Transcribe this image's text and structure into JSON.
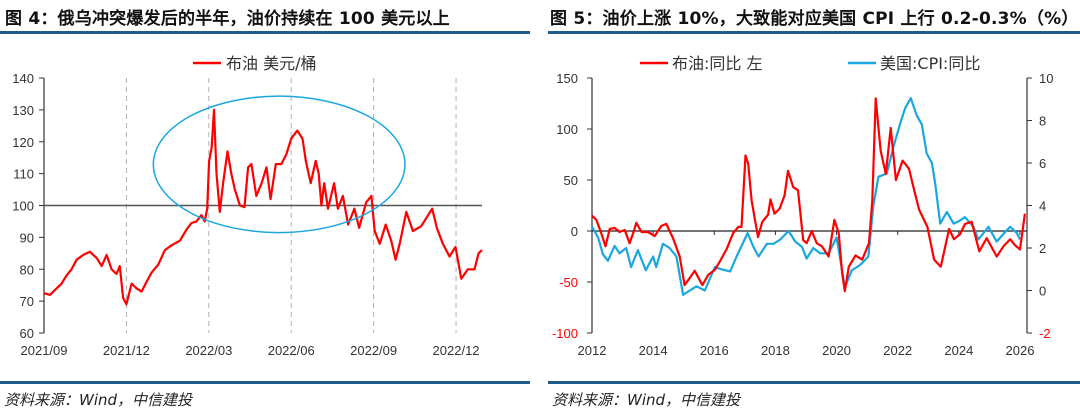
{
  "figures": [
    {
      "title": "图 4：俄乌冲突爆发后的半年，油价持续在 100 美元以上",
      "source": "资料来源：Wind，中信建投"
    },
    {
      "title": "图 5：油价上涨 10%，大致能对应美国 CPI 上行 0.2-0.3%（%）",
      "source": "资料来源：Wind，中信建投"
    }
  ],
  "colors": {
    "oil": "#ff0000",
    "cpi": "#1aa7e0",
    "rule": "#1f5c8b",
    "ellipse": "#1aa7e0"
  },
  "chart_data": [
    {
      "type": "line",
      "title": "俄乌冲突爆发后的半年，油价持续在 100 美元以上",
      "x_unit": "months since 2021/09",
      "xticks": [
        {
          "v": 0,
          "label": "2021/09"
        },
        {
          "v": 3,
          "label": "2021/12"
        },
        {
          "v": 6,
          "label": "2022/03"
        },
        {
          "v": 9,
          "label": "2022/06"
        },
        {
          "v": 12,
          "label": "2022/09"
        },
        {
          "v": 15,
          "label": "2022/12"
        }
      ],
      "ylim": [
        60,
        140
      ],
      "yticks": [
        60,
        70,
        80,
        90,
        100,
        110,
        120,
        130,
        140
      ],
      "reference_line": 100,
      "vertical_gridlines": "dashed at each x tick",
      "legend_position": "top-center",
      "annotation": {
        "type": "ellipse",
        "center": [
          8.56,
          112.9
        ],
        "radius": [
          4.58,
          21.4
        ]
      },
      "series": [
        {
          "name": "布油 美元/桶",
          "color": "#ff0000",
          "x": [
            0,
            0.22,
            0.46,
            0.64,
            0.82,
            1.0,
            1.19,
            1.43,
            1.67,
            1.92,
            2.1,
            2.28,
            2.46,
            2.64,
            2.76,
            2.88,
            3.0,
            3.19,
            3.37,
            3.55,
            3.73,
            3.92,
            4.16,
            4.4,
            4.64,
            4.95,
            5.19,
            5.37,
            5.55,
            5.73,
            5.85,
            5.94,
            6.01,
            6.1,
            6.19,
            6.28,
            6.4,
            6.52,
            6.68,
            6.82,
            6.95,
            7.13,
            7.3,
            7.43,
            7.55,
            7.73,
            7.92,
            8.1,
            8.25,
            8.44,
            8.64,
            8.82,
            9.0,
            9.22,
            9.41,
            9.53,
            9.71,
            9.89,
            10.0,
            10.1,
            10.2,
            10.34,
            10.56,
            10.7,
            10.88,
            11.07,
            11.3,
            11.47,
            11.73,
            11.92,
            12.04,
            12.22,
            12.44,
            12.64,
            12.8,
            12.95,
            13.19,
            13.43,
            13.73,
            14.13,
            14.3,
            14.52,
            14.76,
            14.98,
            15.19,
            15.43,
            15.67,
            15.82,
            15.94
          ],
          "values": [
            72.5,
            72,
            74,
            75.5,
            78,
            80,
            83,
            84.5,
            85.5,
            83.5,
            81,
            84.5,
            80,
            78.5,
            81,
            71,
            69,
            75.5,
            74,
            73,
            76,
            79,
            81.5,
            86,
            87.5,
            89,
            92.5,
            94.5,
            95,
            97,
            95,
            99,
            114,
            118,
            130,
            110,
            98,
            107,
            117,
            110,
            105,
            100,
            99.5,
            112,
            113,
            103,
            107,
            112,
            102,
            113,
            113,
            116,
            121,
            123.5,
            121,
            114,
            107,
            114,
            110,
            100,
            107,
            99,
            107,
            99,
            103,
            94,
            99,
            93,
            101,
            103,
            92,
            88,
            94,
            89,
            83,
            88,
            98,
            92,
            93.5,
            99,
            93,
            88,
            84,
            87,
            77,
            80,
            80,
            85,
            86
          ]
        }
      ]
    },
    {
      "type": "line",
      "title": "油价上涨 10%，大致能对应美国 CPI 上行 0.2-0.3%（%）",
      "xticks": [
        2012,
        2014,
        2016,
        2018,
        2020,
        2022,
        2024,
        2026
      ],
      "xlim": [
        2012,
        2026.2
      ],
      "ylim_left": [
        -100,
        150
      ],
      "yticks_left": [
        -100,
        -50,
        0,
        50,
        100,
        150
      ],
      "ylim_right": [
        -2,
        10
      ],
      "yticks_right": [
        -2,
        0,
        2,
        4,
        6,
        8,
        10
      ],
      "legend_position": "top",
      "series": [
        {
          "name": "布油:同比 左",
          "axis": "left",
          "color": "#ff0000",
          "x": [
            2012.0,
            2012.14,
            2012.3,
            2012.44,
            2012.58,
            2012.74,
            2012.9,
            2013.07,
            2013.23,
            2013.37,
            2013.45,
            2013.62,
            2013.83,
            2014.05,
            2014.27,
            2014.43,
            2014.65,
            2014.87,
            2015.03,
            2015.2,
            2015.36,
            2015.61,
            2015.8,
            2016.02,
            2016.18,
            2016.4,
            2016.62,
            2016.79,
            2016.89,
            2017.02,
            2017.11,
            2017.22,
            2017.43,
            2017.57,
            2017.76,
            2017.84,
            2017.97,
            2018.14,
            2018.3,
            2018.41,
            2018.58,
            2018.74,
            2018.91,
            2019.02,
            2019.19,
            2019.35,
            2019.52,
            2019.74,
            2019.93,
            2020.07,
            2020.18,
            2020.27,
            2020.4,
            2020.62,
            2020.84,
            2021.06,
            2021.17,
            2021.28,
            2021.44,
            2021.61,
            2021.77,
            2021.94,
            2022.16,
            2022.37,
            2022.54,
            2022.7,
            2022.97,
            2023.19,
            2023.41,
            2023.68,
            2023.84,
            2024.04,
            2024.2,
            2024.42,
            2024.67,
            2024.91,
            2025.24,
            2025.46,
            2025.68,
            2025.84,
            2026.0,
            2026.16
          ],
          "values": [
            15,
            11,
            -2,
            -15,
            2,
            3,
            -1,
            1,
            -12,
            0,
            8,
            -1,
            -1,
            -5,
            5,
            7,
            -7,
            -25,
            -53,
            -46,
            -39,
            -53,
            -43,
            -38,
            -30,
            -18,
            -2,
            4,
            4,
            74,
            66,
            30,
            -6,
            9,
            16,
            31,
            17,
            22,
            35,
            59,
            43,
            40,
            -9,
            -12,
            0,
            -12,
            -15,
            -25,
            11,
            -2,
            -41,
            -59,
            -35,
            -24,
            -28,
            -12,
            30,
            130,
            79,
            56,
            101,
            50,
            69,
            61,
            40,
            21,
            4,
            -28,
            -35,
            2,
            -8,
            -3,
            7,
            9,
            -20,
            -7,
            -25,
            -15,
            -8,
            -14,
            -18,
            17
          ]
        },
        {
          "name": "美国:CPI:同比",
          "axis": "right",
          "color": "#1aa7e0",
          "x": [
            2012.0,
            2012.2,
            2012.36,
            2012.52,
            2012.74,
            2012.9,
            2013.12,
            2013.28,
            2013.5,
            2013.76,
            2014.0,
            2014.1,
            2014.32,
            2014.54,
            2014.76,
            2014.98,
            2015.2,
            2015.42,
            2015.69,
            2016.02,
            2016.24,
            2016.52,
            2016.73,
            2017.09,
            2017.28,
            2017.45,
            2017.72,
            2017.94,
            2018.16,
            2018.43,
            2018.65,
            2018.87,
            2019.02,
            2019.24,
            2019.46,
            2019.74,
            2020.0,
            2020.18,
            2020.27,
            2020.5,
            2020.77,
            2021.04,
            2021.2,
            2021.37,
            2021.64,
            2021.86,
            2022.08,
            2022.25,
            2022.43,
            2022.62,
            2022.79,
            2022.95,
            2023.12,
            2023.23,
            2023.39,
            2023.61,
            2023.83,
            2023.99,
            2024.2,
            2024.48,
            2024.64,
            2024.97,
            2025.24,
            2025.51,
            2025.68,
            2025.9,
            2026.0
          ],
          "values": [
            3.0,
            2.5,
            1.7,
            1.4,
            2.1,
            1.75,
            2.0,
            1.1,
            1.9,
            0.95,
            1.6,
            1.1,
            2.2,
            2.0,
            1.6,
            -0.2,
            0.0,
            0.2,
            0.0,
            1.1,
            1.0,
            0.9,
            1.6,
            2.7,
            2.05,
            1.6,
            2.2,
            2.2,
            2.4,
            2.8,
            2.3,
            2.05,
            1.5,
            2.0,
            1.75,
            1.75,
            2.5,
            0.95,
            0.15,
            0.95,
            1.2,
            1.6,
            3.95,
            5.35,
            5.5,
            6.75,
            7.85,
            8.6,
            9.05,
            8.25,
            7.8,
            6.45,
            6.0,
            5.0,
            3.15,
            3.7,
            3.15,
            3.25,
            3.45,
            3.0,
            2.4,
            3.0,
            2.3,
            2.75,
            3.0,
            2.7,
            2.4
          ]
        }
      ]
    }
  ]
}
